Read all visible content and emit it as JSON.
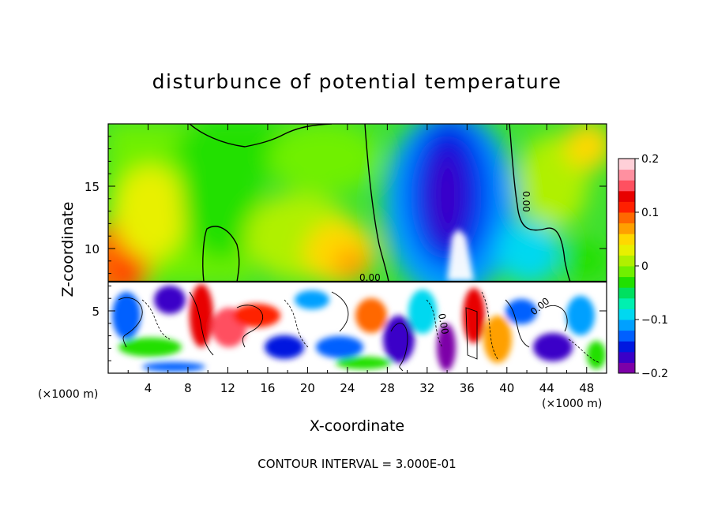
{
  "chart_data": {
    "type": "heatmap",
    "title": "disturbunce of potential temperature",
    "xlabel": "X-coordinate",
    "ylabel": "Z-coordinate",
    "x_unit_left": "(×1000 m)",
    "x_unit_right": "(×1000 m)",
    "footer": "CONTOUR INTERVAL = 3.000E-01",
    "xlim": [
      0,
      50
    ],
    "ylim": [
      0,
      20
    ],
    "x_ticks": [
      4,
      8,
      12,
      16,
      20,
      24,
      28,
      32,
      36,
      40,
      44,
      48
    ],
    "y_ticks": [
      5,
      10,
      15
    ],
    "colorbar": {
      "range": [
        -0.2,
        0.2
      ],
      "tick_values": [
        0.2,
        0.1,
        0,
        -0.1,
        -0.2
      ],
      "tick_labels": [
        "0.2",
        "0.1",
        "0",
        "−0.1",
        "−0.2"
      ],
      "colors": [
        "#7d00a8",
        "#3a00c8",
        "#0018e0",
        "#0060ff",
        "#00a0ff",
        "#00d8f0",
        "#00f0b0",
        "#00e060",
        "#20e000",
        "#70f000",
        "#b0f000",
        "#e8f000",
        "#ffd800",
        "#ffa000",
        "#ff6800",
        "#ff2000",
        "#e80000",
        "#ff5060",
        "#ff90a0",
        "#ffd0d8"
      ]
    },
    "contour_labels": [
      "0.00",
      "0.00",
      "0.00",
      "0.00"
    ],
    "grid": false,
    "legend": "colorbar-right"
  }
}
